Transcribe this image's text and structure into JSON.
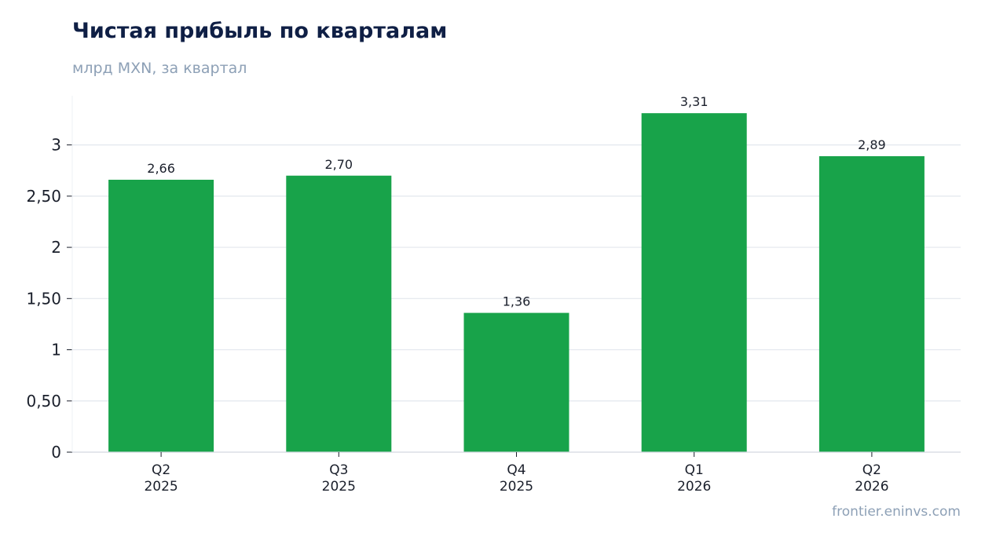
{
  "header": {
    "title": "Чистая прибыль по кварталам",
    "subtitle": "млрд MXN, за квартал"
  },
  "footer": {
    "watermark": "frontier.eninvs.com"
  },
  "colors": {
    "bar": "#18a34a",
    "grid": "#e3e7ee",
    "axis": "#d3d8e0",
    "text": "#1a1f2b"
  },
  "chart_data": {
    "type": "bar",
    "title": "Чистая прибыль по кварталам",
    "subtitle": "млрд MXN, за квартал",
    "categories": [
      [
        "Q2",
        "2025"
      ],
      [
        "Q3",
        "2025"
      ],
      [
        "Q4",
        "2025"
      ],
      [
        "Q1",
        "2026"
      ],
      [
        "Q2",
        "2026"
      ]
    ],
    "values": [
      2.66,
      2.7,
      1.36,
      3.31,
      2.89
    ],
    "data_labels": [
      "2,66",
      "2,70",
      "1,36",
      "3,31",
      "2,89"
    ],
    "yticks": [
      0,
      0.5,
      1,
      1.5,
      2,
      2.5,
      3
    ],
    "ytick_labels": [
      "0",
      "0,50",
      "1",
      "1,50",
      "2",
      "2,50",
      "3"
    ],
    "ylim": [
      0,
      3.48
    ],
    "grid": true,
    "legend": "none"
  }
}
